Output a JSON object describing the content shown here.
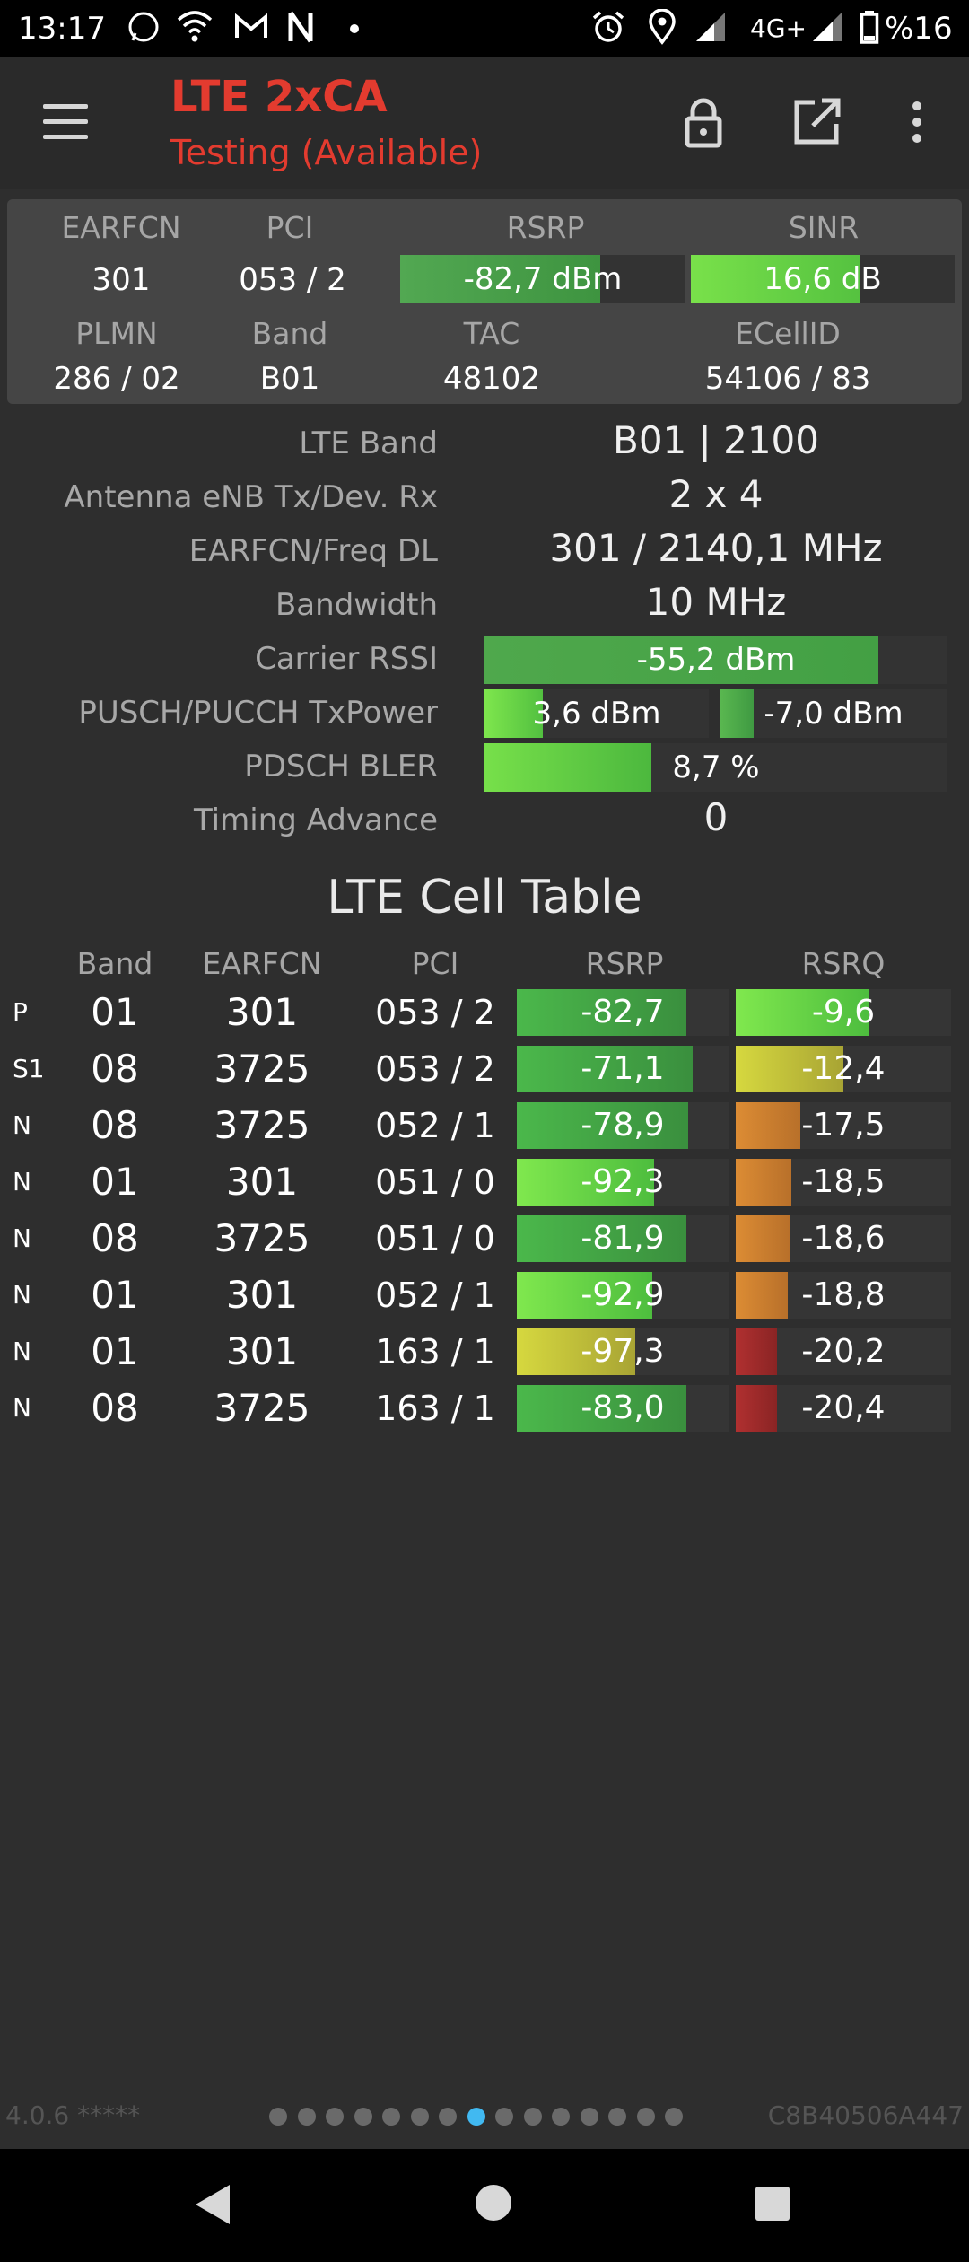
{
  "status_bar": {
    "time": "13:17",
    "network": "4G+",
    "battery": "%16",
    "left_icons": [
      "whatsapp-icon",
      "wifi-icon",
      "gmail-icon",
      "netflix-icon",
      "dot-icon"
    ],
    "right_icons": [
      "alarm-icon",
      "location-icon",
      "signal-icon",
      "signal-icon",
      "battery-icon"
    ]
  },
  "app_bar": {
    "title": "LTE 2xCA",
    "subtitle": "Testing (Available)",
    "actions": [
      "lock-icon",
      "open-external-icon",
      "more-vert-icon"
    ]
  },
  "summary": {
    "earfcn_label": "EARFCN",
    "earfcn": "301",
    "pci_label": "PCI",
    "pci": "053 / 2",
    "rsrp_label": "RSRP",
    "rsrp": "-82,7 dBm",
    "rsrp_level": 0.7,
    "sinr_label": "SINR",
    "sinr": "16,6 dB",
    "sinr_level": 0.64,
    "plmn_label": "PLMN",
    "plmn": "286 / 02",
    "band_label": "Band",
    "band": "B01",
    "tac_label": "TAC",
    "tac": "48102",
    "ecellid_label": "ECellID",
    "ecellid": "54106 / 83"
  },
  "details": {
    "lte_band_label": "LTE Band",
    "lte_band": "B01 | 2100",
    "antenna_label": "Antenna eNB Tx/Dev. Rx",
    "antenna": "2 x 4",
    "freq_label": "EARFCN/Freq DL",
    "freq": "301 / 2140,1 MHz",
    "bandwidth_label": "Bandwidth",
    "bandwidth": "10 MHz",
    "rssi_label": "Carrier RSSI",
    "rssi": "-55,2 dBm",
    "rssi_level": 0.85,
    "txpower_label": "PUSCH/PUCCH TxPower",
    "pusch": "3,6 dBm",
    "pusch_level": 0.26,
    "pucch": "-7,0 dBm",
    "pucch_level": 0.15,
    "bler_label": "PDSCH BLER",
    "bler": "8,7 %",
    "bler_level": 0.36,
    "ta_label": "Timing Advance",
    "ta": "0"
  },
  "cell_table": {
    "title": "LTE Cell Table",
    "headers": {
      "band": "Band",
      "earfcn": "EARFCN",
      "pci": "PCI",
      "rsrp": "RSRP",
      "rsrq": "RSRQ"
    },
    "rows": [
      {
        "type": "P",
        "band": "01",
        "earfcn": "301",
        "pci": "053 / 2",
        "rsrp": "-82,7",
        "rsrp_level": 0.8,
        "rsrp_color": "green",
        "rsrq": "-9,6",
        "rsrq_level": 0.62,
        "rsrq_color": "green"
      },
      {
        "type": "S1",
        "band": "08",
        "earfcn": "3725",
        "pci": "053 / 2",
        "rsrp": "-71,1",
        "rsrp_level": 0.83,
        "rsrp_color": "green",
        "rsrq": "-12,4",
        "rsrq_level": 0.5,
        "rsrq_color": "yellow"
      },
      {
        "type": "N",
        "band": "08",
        "earfcn": "3725",
        "pci": "052 / 1",
        "rsrp": "-78,9",
        "rsrp_level": 0.81,
        "rsrp_color": "green",
        "rsrq": "-17,5",
        "rsrq_level": 0.3,
        "rsrq_color": "orange"
      },
      {
        "type": "N",
        "band": "01",
        "earfcn": "301",
        "pci": "051 / 0",
        "rsrp": "-92,3",
        "rsrp_level": 0.65,
        "rsrp_color": "green",
        "rsrq": "-18,5",
        "rsrq_level": 0.26,
        "rsrq_color": "orange"
      },
      {
        "type": "N",
        "band": "08",
        "earfcn": "3725",
        "pci": "051 / 0",
        "rsrp": "-81,9",
        "rsrp_level": 0.8,
        "rsrp_color": "green",
        "rsrq": "-18,6",
        "rsrq_level": 0.25,
        "rsrq_color": "orange"
      },
      {
        "type": "N",
        "band": "01",
        "earfcn": "301",
        "pci": "052 / 1",
        "rsrp": "-92,9",
        "rsrp_level": 0.64,
        "rsrp_color": "green",
        "rsrq": "-18,8",
        "rsrq_level": 0.24,
        "rsrq_color": "orange"
      },
      {
        "type": "N",
        "band": "01",
        "earfcn": "301",
        "pci": "163 / 1",
        "rsrp": "-97,3",
        "rsrp_level": 0.56,
        "rsrp_color": "yellow",
        "rsrq": "-20,2",
        "rsrq_level": 0.19,
        "rsrq_color": "red"
      },
      {
        "type": "N",
        "band": "08",
        "earfcn": "3725",
        "pci": "163 / 1",
        "rsrp": "-83,0",
        "rsrp_level": 0.8,
        "rsrp_color": "green",
        "rsrq": "-20,4",
        "rsrq_level": 0.19,
        "rsrq_color": "red"
      }
    ]
  },
  "footer": {
    "version": "4.0.6 *****",
    "device_id": "C8B40506A447",
    "page_count": 15,
    "active_page": 8
  },
  "colors": {
    "accent_red": "#e33b2f",
    "bar_green": "#4fbf3e",
    "bar_yellow": "#cfcc3a",
    "bar_orange": "#d07f2c",
    "bar_red": "#9e2a26",
    "active_dot": "#41b9f1"
  }
}
